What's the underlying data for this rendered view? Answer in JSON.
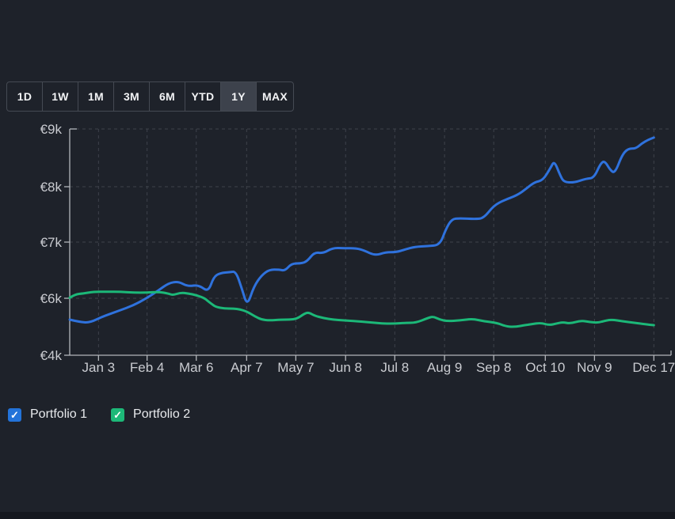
{
  "page": {
    "background": "#1e222a",
    "bottom_bar_color": "#15181f"
  },
  "range_selector": {
    "options": [
      "1D",
      "1W",
      "1M",
      "3M",
      "6M",
      "YTD",
      "1Y",
      "MAX"
    ],
    "selected": "1Y"
  },
  "chart_data": {
    "type": "line",
    "currency": "EUR",
    "grid": "dashed",
    "legend_position": "bottom-left",
    "y_ticks": [
      {
        "label": "€9k",
        "value": 9000
      },
      {
        "label": "€8k",
        "value": 8000
      },
      {
        "label": "€7k",
        "value": 7000
      },
      {
        "label": "€6k",
        "value": 6000
      },
      {
        "label": "€4k",
        "value": 4000
      }
    ],
    "x_ticks": [
      {
        "label": "Jan 3",
        "f": 0.048
      },
      {
        "label": "Feb 4",
        "f": 0.129
      },
      {
        "label": "Mar 6",
        "f": 0.211
      },
      {
        "label": "Apr 7",
        "f": 0.295
      },
      {
        "label": "May 7",
        "f": 0.377
      },
      {
        "label": "Jun 8",
        "f": 0.46
      },
      {
        "label": "Jul 8",
        "f": 0.542
      },
      {
        "label": "Aug 9",
        "f": 0.625
      },
      {
        "label": "Sep 8",
        "f": 0.707
      },
      {
        "label": "Oct 10",
        "f": 0.793
      },
      {
        "label": "Nov 9",
        "f": 0.875
      },
      {
        "label": "Dec 17",
        "f": 0.974
      }
    ],
    "series": [
      {
        "name": "Portfolio 1",
        "color": "#2f72dd",
        "points": [
          [
            0.0,
            5250
          ],
          [
            0.016,
            5170
          ],
          [
            0.033,
            5140
          ],
          [
            0.055,
            5360
          ],
          [
            0.082,
            5560
          ],
          [
            0.106,
            5750
          ],
          [
            0.128,
            6000
          ],
          [
            0.148,
            6140
          ],
          [
            0.165,
            6270
          ],
          [
            0.181,
            6300
          ],
          [
            0.197,
            6210
          ],
          [
            0.215,
            6240
          ],
          [
            0.231,
            6110
          ],
          [
            0.24,
            6380
          ],
          [
            0.251,
            6450
          ],
          [
            0.267,
            6465
          ],
          [
            0.277,
            6480
          ],
          [
            0.287,
            6170
          ],
          [
            0.296,
            5720
          ],
          [
            0.307,
            6210
          ],
          [
            0.32,
            6410
          ],
          [
            0.333,
            6510
          ],
          [
            0.349,
            6510
          ],
          [
            0.359,
            6490
          ],
          [
            0.37,
            6620
          ],
          [
            0.386,
            6620
          ],
          [
            0.396,
            6660
          ],
          [
            0.408,
            6820
          ],
          [
            0.423,
            6800
          ],
          [
            0.439,
            6900
          ],
          [
            0.458,
            6890
          ],
          [
            0.478,
            6890
          ],
          [
            0.491,
            6850
          ],
          [
            0.509,
            6760
          ],
          [
            0.527,
            6820
          ],
          [
            0.544,
            6820
          ],
          [
            0.56,
            6870
          ],
          [
            0.575,
            6915
          ],
          [
            0.597,
            6930
          ],
          [
            0.617,
            6945
          ],
          [
            0.627,
            7230
          ],
          [
            0.637,
            7415
          ],
          [
            0.65,
            7430
          ],
          [
            0.676,
            7415
          ],
          [
            0.69,
            7430
          ],
          [
            0.707,
            7660
          ],
          [
            0.725,
            7760
          ],
          [
            0.746,
            7845
          ],
          [
            0.762,
            7970
          ],
          [
            0.775,
            8080
          ],
          [
            0.789,
            8110
          ],
          [
            0.802,
            8330
          ],
          [
            0.808,
            8450
          ],
          [
            0.818,
            8190
          ],
          [
            0.824,
            8080
          ],
          [
            0.841,
            8070
          ],
          [
            0.861,
            8140
          ],
          [
            0.874,
            8150
          ],
          [
            0.885,
            8400
          ],
          [
            0.892,
            8450
          ],
          [
            0.901,
            8290
          ],
          [
            0.909,
            8230
          ],
          [
            0.921,
            8550
          ],
          [
            0.931,
            8660
          ],
          [
            0.944,
            8660
          ],
          [
            0.954,
            8750
          ],
          [
            0.964,
            8810
          ],
          [
            0.974,
            8850
          ]
        ]
      },
      {
        "name": "Portfolio 2",
        "color": "#1cb878",
        "points": [
          [
            0.0,
            6010
          ],
          [
            0.009,
            6070
          ],
          [
            0.022,
            6085
          ],
          [
            0.04,
            6115
          ],
          [
            0.062,
            6115
          ],
          [
            0.085,
            6115
          ],
          [
            0.108,
            6100
          ],
          [
            0.128,
            6100
          ],
          [
            0.148,
            6115
          ],
          [
            0.164,
            6085
          ],
          [
            0.172,
            6055
          ],
          [
            0.185,
            6100
          ],
          [
            0.198,
            6085
          ],
          [
            0.211,
            6055
          ],
          [
            0.225,
            6000
          ],
          [
            0.231,
            5890
          ],
          [
            0.238,
            5780
          ],
          [
            0.244,
            5695
          ],
          [
            0.258,
            5640
          ],
          [
            0.273,
            5640
          ],
          [
            0.284,
            5610
          ],
          [
            0.296,
            5530
          ],
          [
            0.309,
            5360
          ],
          [
            0.32,
            5250
          ],
          [
            0.333,
            5220
          ],
          [
            0.353,
            5250
          ],
          [
            0.366,
            5250
          ],
          [
            0.379,
            5280
          ],
          [
            0.392,
            5470
          ],
          [
            0.399,
            5500
          ],
          [
            0.408,
            5390
          ],
          [
            0.423,
            5305
          ],
          [
            0.439,
            5250
          ],
          [
            0.458,
            5220
          ],
          [
            0.478,
            5195
          ],
          [
            0.509,
            5140
          ],
          [
            0.524,
            5110
          ],
          [
            0.544,
            5110
          ],
          [
            0.56,
            5140
          ],
          [
            0.577,
            5140
          ],
          [
            0.597,
            5305
          ],
          [
            0.606,
            5360
          ],
          [
            0.617,
            5250
          ],
          [
            0.63,
            5195
          ],
          [
            0.65,
            5220
          ],
          [
            0.672,
            5280
          ],
          [
            0.69,
            5195
          ],
          [
            0.712,
            5140
          ],
          [
            0.729,
            5000
          ],
          [
            0.745,
            5000
          ],
          [
            0.758,
            5055
          ],
          [
            0.769,
            5085
          ],
          [
            0.786,
            5140
          ],
          [
            0.799,
            5055
          ],
          [
            0.812,
            5110
          ],
          [
            0.822,
            5165
          ],
          [
            0.835,
            5110
          ],
          [
            0.852,
            5220
          ],
          [
            0.868,
            5165
          ],
          [
            0.881,
            5140
          ],
          [
            0.894,
            5220
          ],
          [
            0.905,
            5250
          ],
          [
            0.921,
            5195
          ],
          [
            0.941,
            5140
          ],
          [
            0.96,
            5085
          ],
          [
            0.974,
            5055
          ]
        ]
      }
    ]
  },
  "legend": {
    "items": [
      {
        "label": "Portfolio 1",
        "color": "#2373d9",
        "checked": true,
        "check_glyph": "✓"
      },
      {
        "label": "Portfolio 2",
        "color": "#1db878",
        "checked": true,
        "check_glyph": "✓"
      }
    ]
  },
  "chart_style": {
    "grid_color": "#3e424b",
    "axis_color": "#b3b6bb",
    "label_color": "#c9cbd0"
  }
}
